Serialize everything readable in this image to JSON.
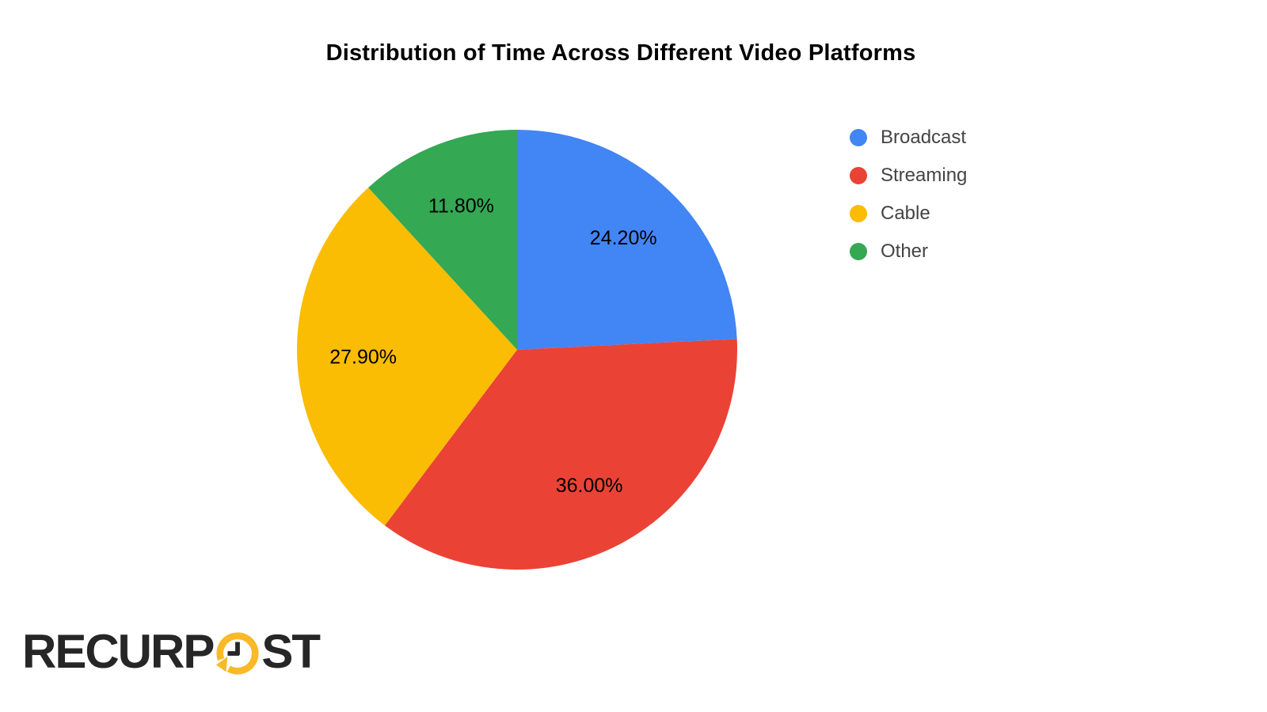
{
  "chart_data": {
    "type": "pie",
    "title": "Distribution of Time Across Different Video Platforms",
    "legend_position": "right",
    "background": "#ffffff",
    "label_color": "#000000",
    "start_angle_deg": 0,
    "direction": "clockwise",
    "slices": [
      {
        "label": "Broadcast",
        "value": 24.2,
        "display": "24.20%",
        "color": "#4285F4"
      },
      {
        "label": "Streaming",
        "value": 36.0,
        "display": "36.00%",
        "color": "#EA4335"
      },
      {
        "label": "Cable",
        "value": 27.9,
        "display": "27.90%",
        "color": "#FBBC04"
      },
      {
        "label": "Other",
        "value": 11.8,
        "display": "11.80%",
        "color": "#34A853"
      }
    ]
  },
  "logo": {
    "text_before": "RECURP",
    "text_after": "ST",
    "text_color": "#262626",
    "icon": "clock-refresh-icon",
    "icon_color": "#F9B928"
  }
}
